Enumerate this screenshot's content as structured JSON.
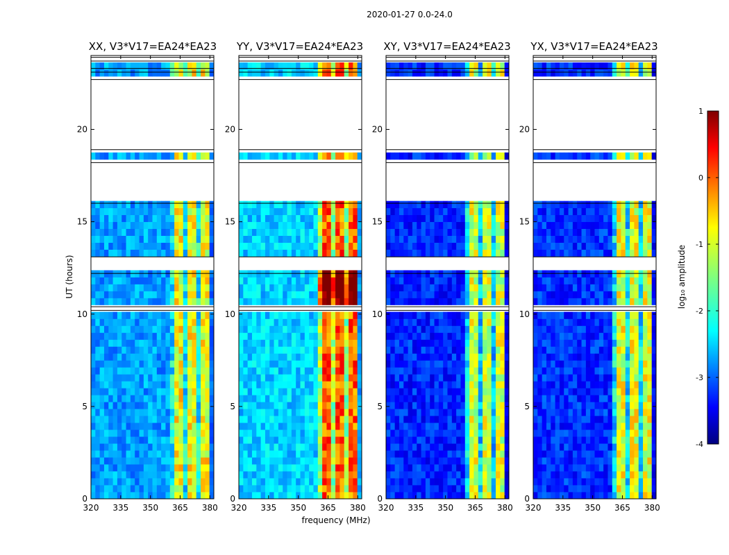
{
  "chart_data": {
    "type": "heatmap",
    "suptitle": "2020-01-27 0.0-24.0",
    "xlabel": "frequency (MHz)",
    "ylabel": "UT (hours)",
    "xlim": [
      320,
      382
    ],
    "ylim": [
      0,
      24
    ],
    "xticks": [
      320,
      335,
      350,
      365,
      380
    ],
    "yticks": [
      0,
      5,
      10,
      15,
      20
    ],
    "colorbar": {
      "label": "log₁₀ amplitude",
      "range": [
        -4,
        1
      ],
      "ticks": [
        1,
        0,
        -1,
        -2,
        -3,
        -4
      ],
      "colormap": "jet"
    },
    "panels": [
      {
        "title": "XX, V3*V17=EA24*EA23",
        "pol": "XX",
        "band_level": 0.62,
        "background_level": 0.28
      },
      {
        "title": "YY, V3*V17=EA24*EA23",
        "pol": "YY",
        "band_level": 0.78,
        "background_level": 0.33
      },
      {
        "title": "XY, V3*V17=EA24*EA23",
        "pol": "XY",
        "band_level": 0.58,
        "background_level": 0.16
      },
      {
        "title": "YX, V3*V17=EA24*EA23",
        "pol": "YX",
        "band_level": 0.6,
        "background_level": 0.17
      }
    ],
    "bright_band_mhz": [
      360,
      380
    ],
    "flagged_ut_ranges": [
      [
        10.2,
        10.4
      ],
      [
        12.2,
        13.1
      ],
      [
        16.0,
        18.2
      ],
      [
        18.9,
        22.7
      ],
      [
        23.1,
        23.3
      ],
      [
        23.7,
        23.9
      ]
    ]
  }
}
